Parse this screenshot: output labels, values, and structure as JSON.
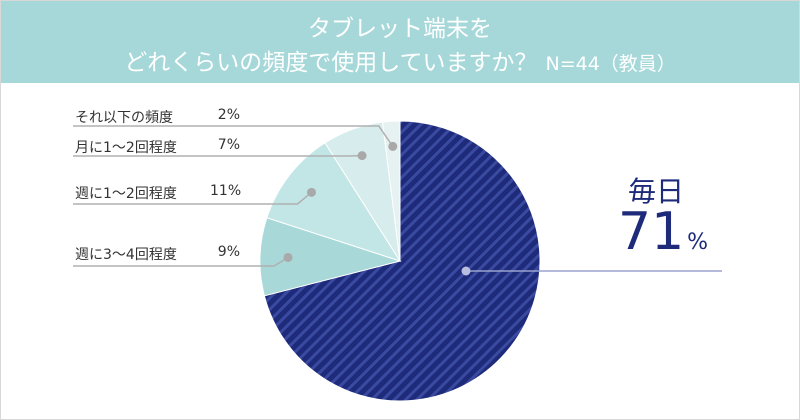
{
  "title": {
    "line1": "タブレット端末を",
    "line2": "どれくらいの頻度で使用していますか？",
    "note": "N=44（教員）"
  },
  "chart_data": {
    "type": "pie",
    "slices": [
      {
        "label": "毎日",
        "value": 71,
        "color": "#1e2a7a",
        "pattern": "diagonal-stripes"
      },
      {
        "label": "週に3〜4回程度",
        "value": 9,
        "color": "#a8d8d8"
      },
      {
        "label": "週に1〜2回程度",
        "value": 11,
        "color": "#c2e6e6"
      },
      {
        "label": "月に1〜2回程度",
        "value": 7,
        "color": "#d7ecec"
      },
      {
        "label": "それ以下の頻度",
        "value": 2,
        "color": "#e6f2f2"
      }
    ]
  },
  "labels": {
    "daily": {
      "name": "毎日",
      "value": "71",
      "unit": "%"
    },
    "less": {
      "name": "それ以下の頻度",
      "value": "2%"
    },
    "monthly": {
      "name": "月に1〜2回程度",
      "value": "7%"
    },
    "weekly12": {
      "name": "週に1〜2回程度",
      "value": "11%"
    },
    "weekly34": {
      "name": "週に3〜4回程度",
      "value": "9%"
    }
  },
  "colors": {
    "header": "#a6d8d9",
    "accent": "#1e2a7a",
    "leader": "#b0b0b0"
  }
}
